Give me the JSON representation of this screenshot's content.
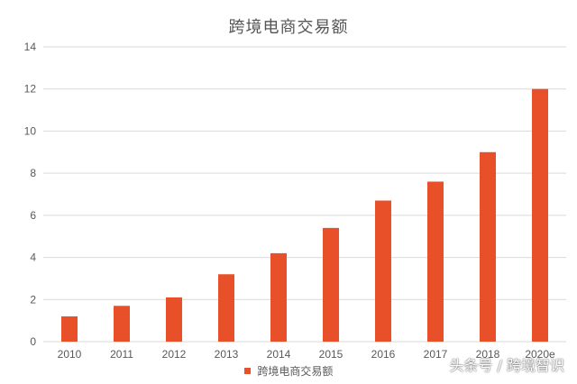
{
  "chart_data": {
    "type": "bar",
    "title": "跨境电商交易额",
    "categories": [
      "2010",
      "2011",
      "2012",
      "2013",
      "2014",
      "2015",
      "2016",
      "2017",
      "2018",
      "2020e"
    ],
    "series": [
      {
        "name": "跨境电商交易额",
        "values": [
          1.2,
          1.7,
          2.1,
          3.2,
          4.2,
          5.4,
          6.7,
          7.6,
          9.0,
          12.0
        ],
        "color": "#e8502a"
      }
    ],
    "ylim": [
      0,
      14
    ],
    "yticks": [
      0,
      2,
      4,
      6,
      8,
      10,
      12,
      14
    ],
    "grid": true,
    "legend_position": "bottom",
    "gridline_color": "#d9d9d9"
  },
  "watermark": "头条号 / 跨境智识"
}
